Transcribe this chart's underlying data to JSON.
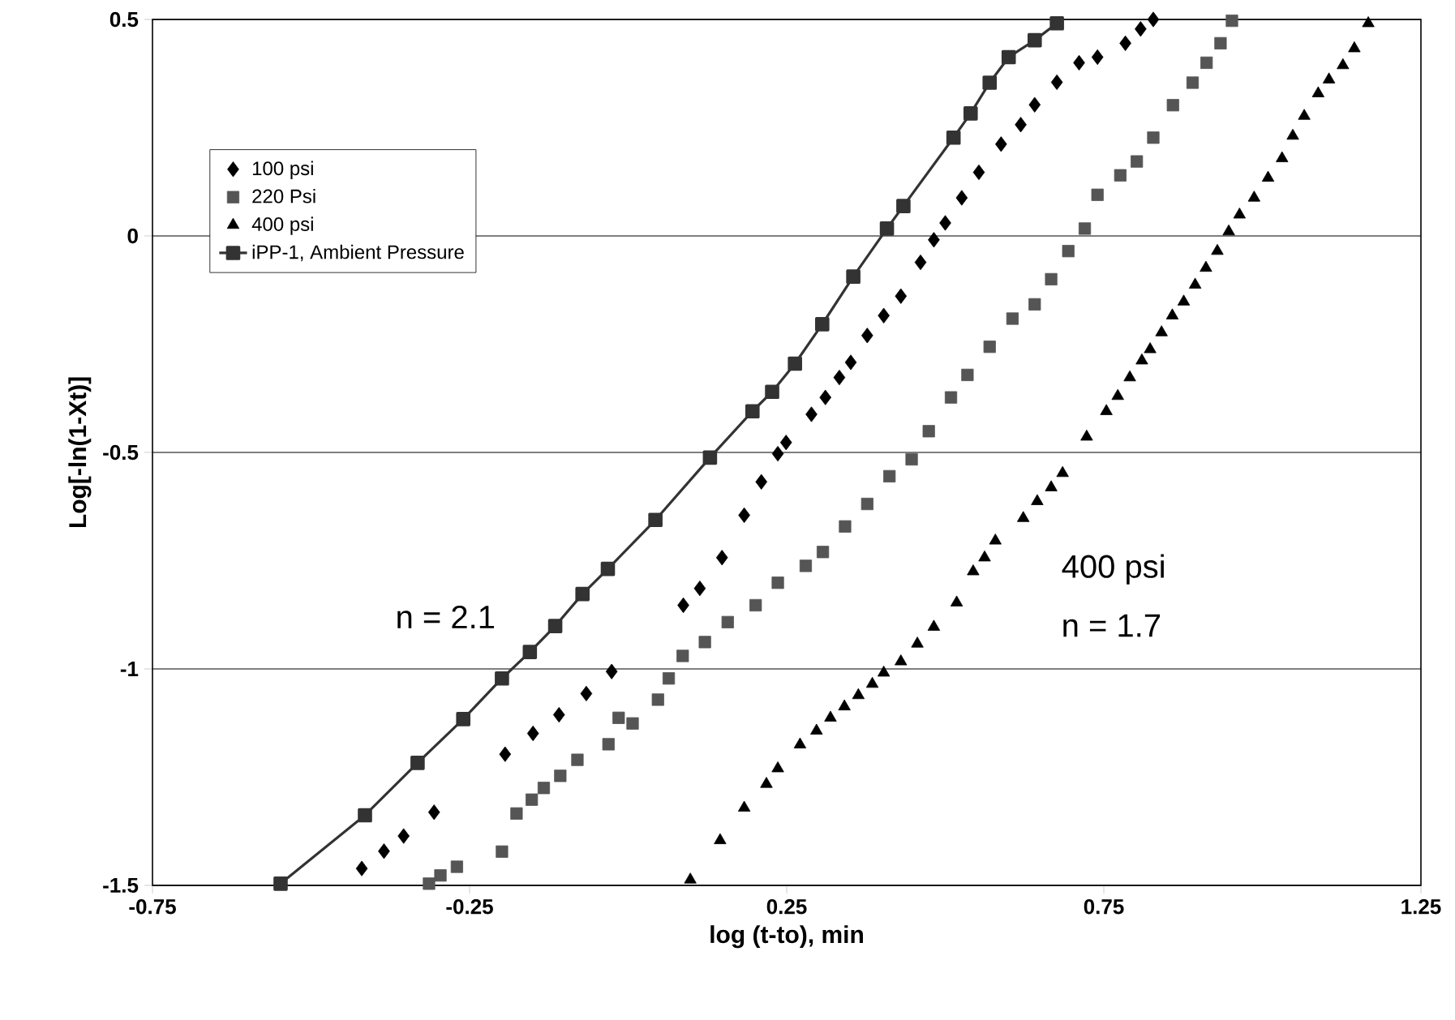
{
  "chart_data": {
    "type": "scatter",
    "xlabel": "log (t-to), min",
    "ylabel": "Log[-ln(1-Xt)]",
    "xlim": [
      -0.75,
      1.25
    ],
    "ylim": [
      -1.5,
      0.5
    ],
    "xticks": [
      -0.75,
      -0.25,
      0.25,
      0.75,
      1.25
    ],
    "yticks": [
      -1.5,
      -1,
      -0.5,
      0,
      0.5
    ],
    "grid": "y",
    "legend": "top left",
    "annotations": [
      "n = 2.1",
      "400 psi",
      "n = 1.7"
    ],
    "series": [
      {
        "name": "100 psi",
        "marker": "diamond",
        "color": "#000000",
        "x": [
          -0.42,
          -0.385,
          -0.354,
          -0.306,
          -0.194,
          -0.15,
          -0.109,
          -0.066,
          -0.026,
          0.087,
          0.113,
          0.148,
          0.183,
          0.21,
          0.236,
          0.249,
          0.289,
          0.311,
          0.333,
          0.351,
          0.377,
          0.403,
          0.43,
          0.461,
          0.482,
          0.5,
          0.526,
          0.553,
          0.588,
          0.619,
          0.641,
          0.676,
          0.711,
          0.74,
          0.784,
          0.808,
          0.828
        ],
        "values": [
          -1.461,
          -1.421,
          -1.386,
          -1.331,
          -1.197,
          -1.149,
          -1.106,
          -1.057,
          -1.006,
          -0.853,
          -0.814,
          -0.743,
          -0.645,
          -0.568,
          -0.503,
          -0.477,
          -0.412,
          -0.373,
          -0.327,
          -0.292,
          -0.23,
          -0.184,
          -0.139,
          -0.061,
          -0.009,
          0.03,
          0.088,
          0.147,
          0.212,
          0.257,
          0.303,
          0.355,
          0.4,
          0.413,
          0.445,
          0.478,
          0.5
        ]
      },
      {
        "name": "220 Psi",
        "marker": "square",
        "color": "#555555",
        "x": [
          -0.314,
          -0.296,
          -0.27,
          -0.199,
          -0.176,
          -0.152,
          -0.133,
          -0.107,
          -0.08,
          -0.031,
          -0.015,
          0.007,
          0.047,
          0.064,
          0.086,
          0.121,
          0.157,
          0.201,
          0.236,
          0.28,
          0.307,
          0.342,
          0.377,
          0.412,
          0.447,
          0.474,
          0.509,
          0.535,
          0.57,
          0.606,
          0.641,
          0.667,
          0.694,
          0.72,
          0.74,
          0.776,
          0.802,
          0.828,
          0.859,
          0.89,
          0.912,
          0.934,
          0.952
        ],
        "values": [
          -1.496,
          -1.477,
          -1.457,
          -1.422,
          -1.334,
          -1.302,
          -1.275,
          -1.247,
          -1.21,
          -1.174,
          -1.113,
          -1.126,
          -1.071,
          -1.022,
          -0.97,
          -0.938,
          -0.892,
          -0.853,
          -0.801,
          -0.762,
          -0.73,
          -0.671,
          -0.619,
          -0.555,
          -0.516,
          -0.451,
          -0.373,
          -0.321,
          -0.256,
          -0.191,
          -0.158,
          -0.1,
          -0.035,
          0.017,
          0.095,
          0.14,
          0.172,
          0.227,
          0.302,
          0.354,
          0.4,
          0.445,
          0.497
        ]
      },
      {
        "name": "400 psi",
        "marker": "triangle",
        "color": "#000000",
        "x": [
          0.098,
          0.145,
          0.183,
          0.218,
          0.236,
          0.271,
          0.297,
          0.319,
          0.341,
          0.363,
          0.385,
          0.403,
          0.43,
          0.456,
          0.482,
          0.518,
          0.544,
          0.562,
          0.579,
          0.623,
          0.645,
          0.667,
          0.685,
          0.723,
          0.754,
          0.772,
          0.791,
          0.81,
          0.823,
          0.841,
          0.858,
          0.876,
          0.894,
          0.911,
          0.929,
          0.947,
          0.964,
          0.987,
          1.009,
          1.031,
          1.048,
          1.066,
          1.088,
          1.105,
          1.127,
          1.145,
          1.167
        ],
        "values": [
          -1.487,
          -1.396,
          -1.321,
          -1.266,
          -1.23,
          -1.175,
          -1.143,
          -1.113,
          -1.087,
          -1.061,
          -1.035,
          -1.009,
          -0.983,
          -0.942,
          -0.903,
          -0.847,
          -0.775,
          -0.743,
          -0.704,
          -0.652,
          -0.613,
          -0.581,
          -0.548,
          -0.464,
          -0.405,
          -0.37,
          -0.327,
          -0.288,
          -0.262,
          -0.223,
          -0.184,
          -0.152,
          -0.113,
          -0.074,
          -0.035,
          0.01,
          0.049,
          0.088,
          0.134,
          0.179,
          0.231,
          0.277,
          0.329,
          0.361,
          0.394,
          0.433,
          0.491
        ]
      },
      {
        "name": "iPP-1, Ambient Pressure",
        "type": "line",
        "marker": "square",
        "line_style": "solid",
        "color": "#333333",
        "x": [
          -0.548,
          -0.415,
          -0.332,
          -0.26,
          -0.199,
          -0.155,
          -0.115,
          -0.072,
          -0.032,
          0.043,
          0.129,
          0.196,
          0.227,
          0.263,
          0.306,
          0.355,
          0.408,
          0.434,
          0.513,
          0.54,
          0.57,
          0.6,
          0.641,
          0.676
        ],
        "values": [
          -1.496,
          -1.338,
          -1.217,
          -1.116,
          -1.022,
          -0.961,
          -0.901,
          -0.827,
          -0.769,
          -0.656,
          -0.512,
          -0.405,
          -0.36,
          -0.295,
          -0.204,
          -0.094,
          0.017,
          0.069,
          0.227,
          0.283,
          0.354,
          0.413,
          0.452,
          0.491
        ]
      }
    ]
  }
}
